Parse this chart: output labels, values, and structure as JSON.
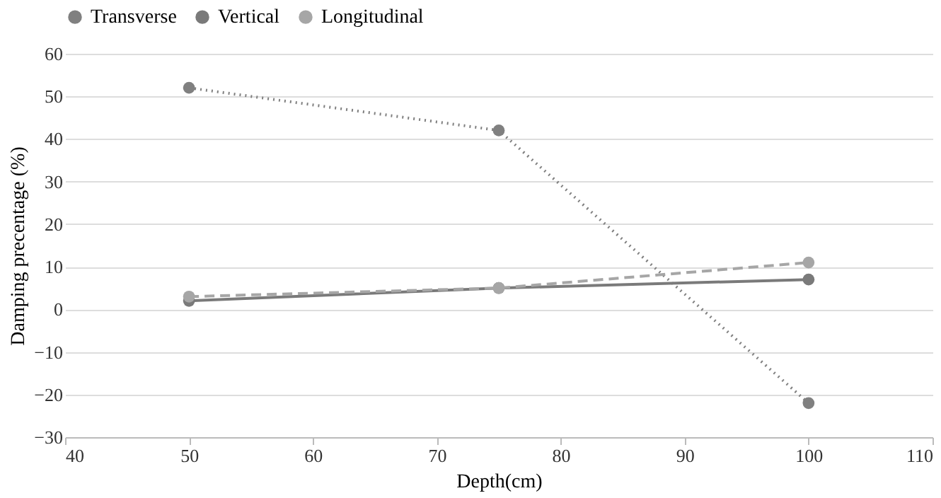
{
  "chart_data": {
    "type": "line",
    "xlabel": "Depth(cm)",
    "ylabel": "Damping precentage (%)",
    "x": [
      50,
      75,
      100
    ],
    "series": [
      {
        "name": "Transverse",
        "color": "#808080",
        "line_style": "dotted",
        "values": [
          52,
          42,
          -22
        ]
      },
      {
        "name": "Vertical",
        "color": "#7a7a7a",
        "line_style": "solid",
        "values": [
          2,
          5,
          7
        ]
      },
      {
        "name": "Longitudinal",
        "color": "#a6a6a6",
        "line_style": "dashed",
        "values": [
          3,
          5,
          11
        ]
      }
    ],
    "xlim": [
      40,
      110
    ],
    "xticks": [
      40,
      50,
      60,
      70,
      80,
      90,
      100,
      110
    ],
    "ylim": [
      -30,
      60
    ],
    "yticks": [
      -30,
      -20,
      -10,
      0,
      10,
      20,
      30,
      40,
      50,
      60
    ],
    "grid": "y",
    "legend": "top",
    "marker": "circle"
  }
}
